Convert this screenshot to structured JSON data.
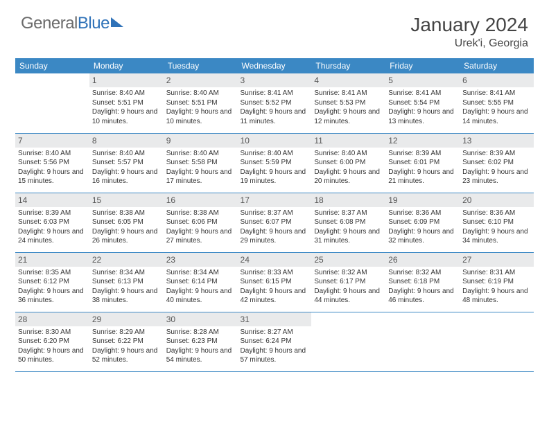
{
  "brand": {
    "part1": "General",
    "part2": "Blue"
  },
  "title": "January 2024",
  "location": "Urek'i, Georgia",
  "colors": {
    "header_bg": "#3b88c4",
    "header_text": "#ffffff",
    "daynum_bg": "#e9eaeb",
    "row_border": "#3b88c4",
    "brand_gray": "#6b6b6b",
    "brand_blue": "#2f72b8"
  },
  "weekdays": [
    "Sunday",
    "Monday",
    "Tuesday",
    "Wednesday",
    "Thursday",
    "Friday",
    "Saturday"
  ],
  "cells": [
    {
      "day": "",
      "sunrise": "",
      "sunset": "",
      "daylight": "",
      "empty": true
    },
    {
      "day": "1",
      "sunrise": "8:40 AM",
      "sunset": "5:51 PM",
      "daylight": "9 hours and 10 minutes."
    },
    {
      "day": "2",
      "sunrise": "8:40 AM",
      "sunset": "5:51 PM",
      "daylight": "9 hours and 10 minutes."
    },
    {
      "day": "3",
      "sunrise": "8:41 AM",
      "sunset": "5:52 PM",
      "daylight": "9 hours and 11 minutes."
    },
    {
      "day": "4",
      "sunrise": "8:41 AM",
      "sunset": "5:53 PM",
      "daylight": "9 hours and 12 minutes."
    },
    {
      "day": "5",
      "sunrise": "8:41 AM",
      "sunset": "5:54 PM",
      "daylight": "9 hours and 13 minutes."
    },
    {
      "day": "6",
      "sunrise": "8:41 AM",
      "sunset": "5:55 PM",
      "daylight": "9 hours and 14 minutes."
    },
    {
      "day": "7",
      "sunrise": "8:40 AM",
      "sunset": "5:56 PM",
      "daylight": "9 hours and 15 minutes."
    },
    {
      "day": "8",
      "sunrise": "8:40 AM",
      "sunset": "5:57 PM",
      "daylight": "9 hours and 16 minutes."
    },
    {
      "day": "9",
      "sunrise": "8:40 AM",
      "sunset": "5:58 PM",
      "daylight": "9 hours and 17 minutes."
    },
    {
      "day": "10",
      "sunrise": "8:40 AM",
      "sunset": "5:59 PM",
      "daylight": "9 hours and 19 minutes."
    },
    {
      "day": "11",
      "sunrise": "8:40 AM",
      "sunset": "6:00 PM",
      "daylight": "9 hours and 20 minutes."
    },
    {
      "day": "12",
      "sunrise": "8:39 AM",
      "sunset": "6:01 PM",
      "daylight": "9 hours and 21 minutes."
    },
    {
      "day": "13",
      "sunrise": "8:39 AM",
      "sunset": "6:02 PM",
      "daylight": "9 hours and 23 minutes."
    },
    {
      "day": "14",
      "sunrise": "8:39 AM",
      "sunset": "6:03 PM",
      "daylight": "9 hours and 24 minutes."
    },
    {
      "day": "15",
      "sunrise": "8:38 AM",
      "sunset": "6:05 PM",
      "daylight": "9 hours and 26 minutes."
    },
    {
      "day": "16",
      "sunrise": "8:38 AM",
      "sunset": "6:06 PM",
      "daylight": "9 hours and 27 minutes."
    },
    {
      "day": "17",
      "sunrise": "8:37 AM",
      "sunset": "6:07 PM",
      "daylight": "9 hours and 29 minutes."
    },
    {
      "day": "18",
      "sunrise": "8:37 AM",
      "sunset": "6:08 PM",
      "daylight": "9 hours and 31 minutes."
    },
    {
      "day": "19",
      "sunrise": "8:36 AM",
      "sunset": "6:09 PM",
      "daylight": "9 hours and 32 minutes."
    },
    {
      "day": "20",
      "sunrise": "8:36 AM",
      "sunset": "6:10 PM",
      "daylight": "9 hours and 34 minutes."
    },
    {
      "day": "21",
      "sunrise": "8:35 AM",
      "sunset": "6:12 PM",
      "daylight": "9 hours and 36 minutes."
    },
    {
      "day": "22",
      "sunrise": "8:34 AM",
      "sunset": "6:13 PM",
      "daylight": "9 hours and 38 minutes."
    },
    {
      "day": "23",
      "sunrise": "8:34 AM",
      "sunset": "6:14 PM",
      "daylight": "9 hours and 40 minutes."
    },
    {
      "day": "24",
      "sunrise": "8:33 AM",
      "sunset": "6:15 PM",
      "daylight": "9 hours and 42 minutes."
    },
    {
      "day": "25",
      "sunrise": "8:32 AM",
      "sunset": "6:17 PM",
      "daylight": "9 hours and 44 minutes."
    },
    {
      "day": "26",
      "sunrise": "8:32 AM",
      "sunset": "6:18 PM",
      "daylight": "9 hours and 46 minutes."
    },
    {
      "day": "27",
      "sunrise": "8:31 AM",
      "sunset": "6:19 PM",
      "daylight": "9 hours and 48 minutes."
    },
    {
      "day": "28",
      "sunrise": "8:30 AM",
      "sunset": "6:20 PM",
      "daylight": "9 hours and 50 minutes."
    },
    {
      "day": "29",
      "sunrise": "8:29 AM",
      "sunset": "6:22 PM",
      "daylight": "9 hours and 52 minutes."
    },
    {
      "day": "30",
      "sunrise": "8:28 AM",
      "sunset": "6:23 PM",
      "daylight": "9 hours and 54 minutes."
    },
    {
      "day": "31",
      "sunrise": "8:27 AM",
      "sunset": "6:24 PM",
      "daylight": "9 hours and 57 minutes."
    },
    {
      "day": "",
      "sunrise": "",
      "sunset": "",
      "daylight": "",
      "empty": true
    },
    {
      "day": "",
      "sunrise": "",
      "sunset": "",
      "daylight": "",
      "empty": true
    },
    {
      "day": "",
      "sunrise": "",
      "sunset": "",
      "daylight": "",
      "empty": true
    }
  ],
  "labels": {
    "sunrise": "Sunrise:",
    "sunset": "Sunset:",
    "daylight": "Daylight:"
  }
}
